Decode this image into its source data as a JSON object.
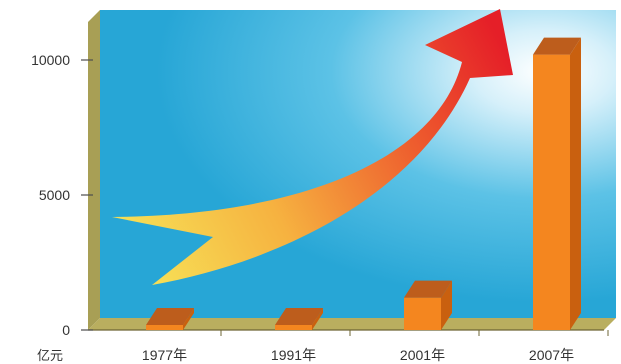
{
  "chart_data": {
    "type": "bar",
    "categories": [
      "1977年",
      "1991年",
      "2001年",
      "2007年"
    ],
    "values": [
      0,
      0,
      1200,
      10200
    ],
    "y_unit": "亿元",
    "yticks": [
      0,
      5000,
      10000
    ],
    "ylim": [
      0,
      11700
    ],
    "grid": false,
    "title": "",
    "xlabel": "",
    "ylabel": "",
    "colors": {
      "bar_front": "#f4861f",
      "bar_side": "#c9600f",
      "bar_top": "#bd5d1c",
      "wall": "#3cb6de",
      "floor": "#b9ae5f",
      "arrow_tip": "#e8202a",
      "arrow_tail": "#f5d64a"
    },
    "decoration": "growth-arrow"
  }
}
